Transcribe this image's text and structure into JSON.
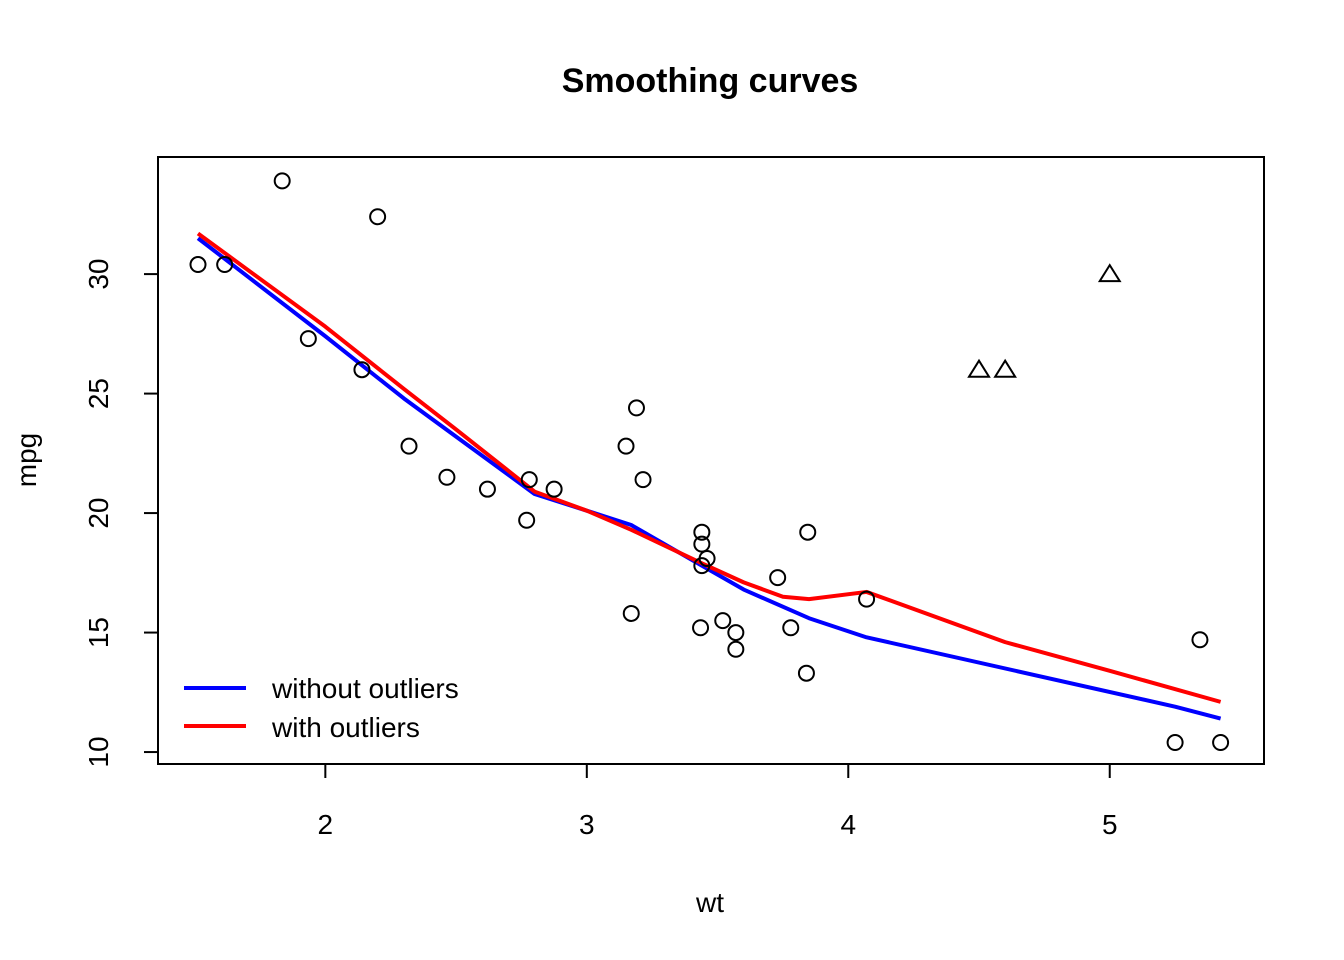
{
  "chart_data": {
    "type": "scatter",
    "title": "Smoothing curves",
    "xlabel": "wt",
    "ylabel": "mpg",
    "xlim": [
      1.36,
      5.59
    ],
    "ylim": [
      9.5,
      34.9
    ],
    "xticks": [
      2,
      3,
      4,
      5
    ],
    "yticks": [
      10,
      15,
      20,
      25,
      30
    ],
    "grid": false,
    "legend_position": "bottom-left",
    "points": [
      {
        "x": 2.62,
        "y": 21.0
      },
      {
        "x": 2.875,
        "y": 21.0
      },
      {
        "x": 2.32,
        "y": 22.8
      },
      {
        "x": 3.215,
        "y": 21.4
      },
      {
        "x": 3.44,
        "y": 18.7
      },
      {
        "x": 3.46,
        "y": 18.1
      },
      {
        "x": 3.57,
        "y": 14.3
      },
      {
        "x": 3.19,
        "y": 24.4
      },
      {
        "x": 3.15,
        "y": 22.8
      },
      {
        "x": 3.44,
        "y": 19.2
      },
      {
        "x": 3.44,
        "y": 17.8
      },
      {
        "x": 4.07,
        "y": 16.4
      },
      {
        "x": 3.73,
        "y": 17.3
      },
      {
        "x": 3.78,
        "y": 15.2
      },
      {
        "x": 5.25,
        "y": 10.4
      },
      {
        "x": 5.424,
        "y": 10.4
      },
      {
        "x": 5.345,
        "y": 14.7
      },
      {
        "x": 2.2,
        "y": 32.4
      },
      {
        "x": 1.615,
        "y": 30.4
      },
      {
        "x": 1.835,
        "y": 33.9
      },
      {
        "x": 2.465,
        "y": 21.5
      },
      {
        "x": 3.52,
        "y": 15.5
      },
      {
        "x": 3.435,
        "y": 15.2
      },
      {
        "x": 3.84,
        "y": 13.3
      },
      {
        "x": 3.845,
        "y": 19.2
      },
      {
        "x": 1.935,
        "y": 27.3
      },
      {
        "x": 2.14,
        "y": 26.0
      },
      {
        "x": 1.513,
        "y": 30.4
      },
      {
        "x": 3.17,
        "y": 15.8
      },
      {
        "x": 2.77,
        "y": 19.7
      },
      {
        "x": 3.57,
        "y": 15.0
      },
      {
        "x": 2.78,
        "y": 21.4
      }
    ],
    "outliers": [
      {
        "x": 4.5,
        "y": 26.0
      },
      {
        "x": 4.6,
        "y": 26.0
      },
      {
        "x": 5.0,
        "y": 30.0
      }
    ],
    "series": [
      {
        "name": "without outliers",
        "color": "#0000ff",
        "x": [
          1.513,
          2.0,
          2.3,
          2.5,
          2.8,
          3.0,
          3.17,
          3.44,
          3.6,
          3.85,
          4.07,
          5.25,
          5.424
        ],
        "y": [
          31.5,
          27.4,
          24.8,
          23.2,
          20.8,
          20.1,
          19.5,
          17.8,
          16.8,
          15.6,
          14.8,
          11.9,
          11.4
        ]
      },
      {
        "name": "with outliers",
        "color": "#ff0000",
        "x": [
          1.513,
          2.0,
          2.3,
          2.5,
          2.8,
          3.0,
          3.17,
          3.44,
          3.6,
          3.75,
          3.85,
          4.07,
          4.6,
          5.0,
          5.424
        ],
        "y": [
          31.7,
          27.8,
          25.2,
          23.5,
          20.9,
          20.1,
          19.3,
          17.9,
          17.1,
          16.5,
          16.4,
          16.7,
          14.6,
          13.4,
          12.1
        ]
      }
    ]
  }
}
